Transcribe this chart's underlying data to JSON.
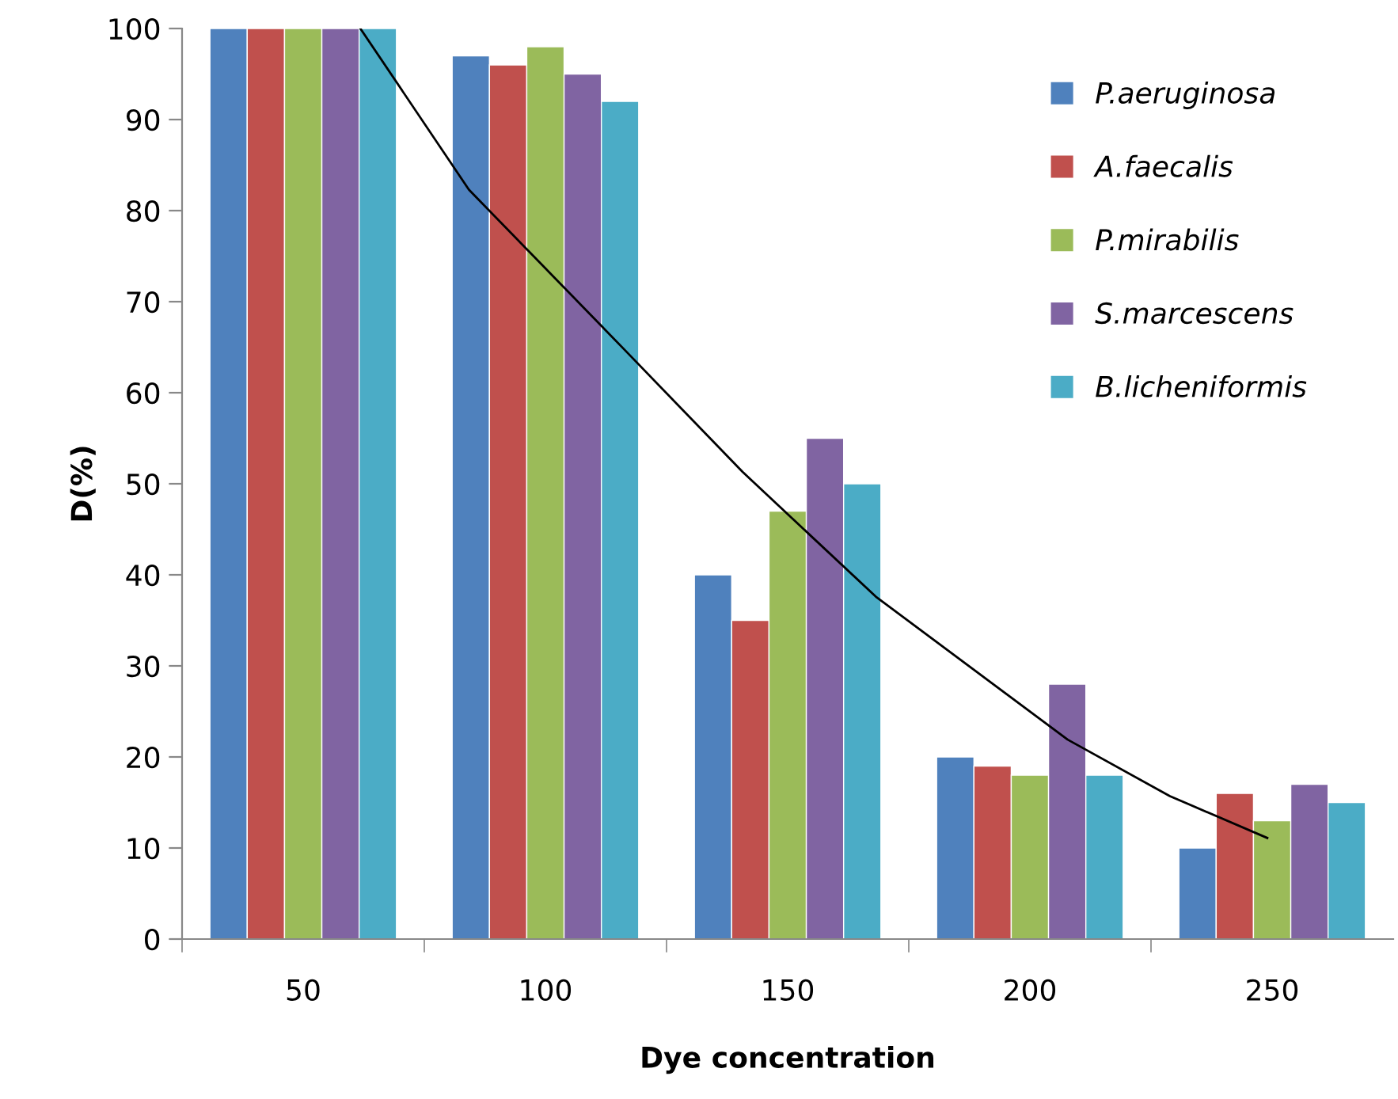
{
  "chart_data": {
    "type": "bar",
    "xlabel": "Dye concentration",
    "ylabel": "D(%)",
    "x": [
      50,
      100,
      150,
      200,
      250
    ],
    "xlim": [
      25,
      275
    ],
    "xticks": [
      {
        "value": 25,
        "label": null
      },
      50,
      {
        "value": 75,
        "label": null
      },
      100,
      {
        "value": 125,
        "label": null
      },
      150,
      {
        "value": 175,
        "label": null
      },
      200,
      {
        "value": 225,
        "label": null
      },
      250
    ],
    "ylim": [
      0,
      100
    ],
    "yticks": [
      0,
      10,
      20,
      30,
      40,
      50,
      60,
      70,
      80,
      90,
      100
    ],
    "grid": false,
    "legend": "top right",
    "series": [
      {
        "name": "P.aeruginosa",
        "color": "#4f81bd",
        "values": [
          100,
          97,
          40,
          20,
          10
        ]
      },
      {
        "name": "A.faecalis",
        "color": "#c0504d",
        "values": [
          100,
          96,
          35,
          19,
          16
        ]
      },
      {
        "name": "P.mirabilis",
        "color": "#9bbb59",
        "values": [
          100,
          98,
          47,
          18,
          13
        ]
      },
      {
        "name": "S.marcescens",
        "color": "#8064a2",
        "values": [
          100,
          95,
          55,
          28,
          17
        ]
      },
      {
        "name": "B.licheniformis",
        "color": "#4bacc6",
        "values": [
          100,
          92,
          50,
          18,
          15
        ]
      },
      {
        "type": "line",
        "color": "#000000",
        "x": [
          61.8,
          84.2,
          116,
          140.7,
          168.2,
          207.8,
          228.9,
          249
        ],
        "values": [
          100,
          82.3,
          64.9,
          51.3,
          37.6,
          21.9,
          15.7,
          11.1
        ]
      }
    ]
  }
}
